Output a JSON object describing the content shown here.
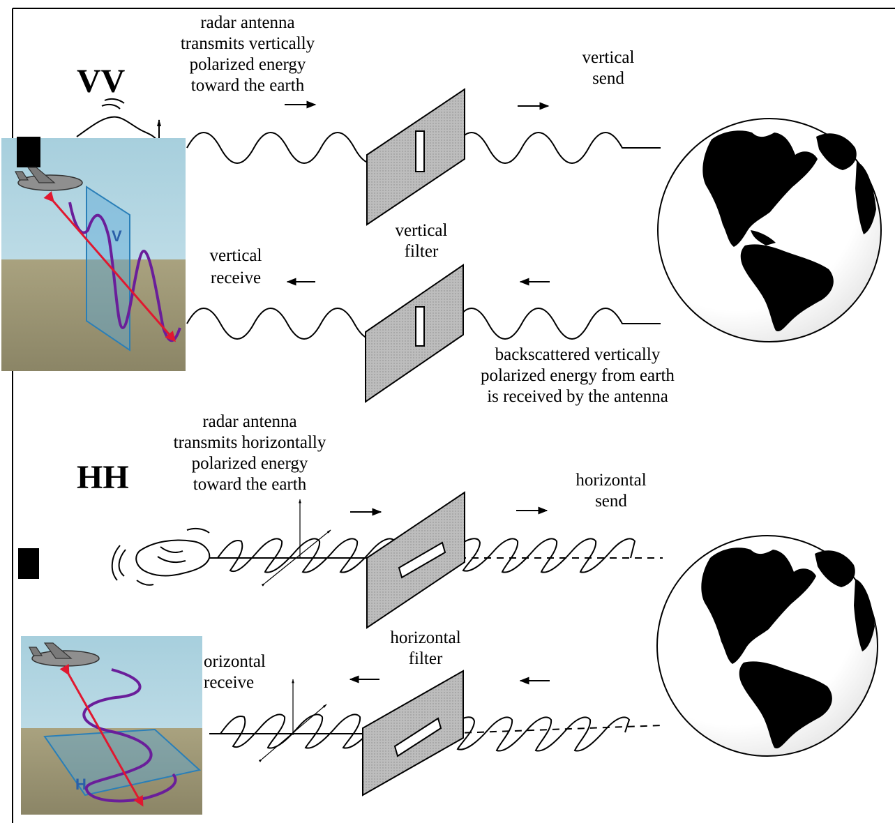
{
  "vv": {
    "mode_label": "VV",
    "transmit_caption": [
      "radar antenna",
      "transmits vertically",
      "polarized energy",
      "toward the earth"
    ],
    "send_caption": [
      "vertical",
      "send"
    ],
    "filter_caption": [
      "vertical",
      "filter"
    ],
    "receive_caption": [
      "vertical",
      "receive"
    ],
    "backscatter_caption": [
      "backscattered vertically",
      "polarized energy from earth",
      "is received by the antenna"
    ],
    "thumbnail_letter": "V"
  },
  "hh": {
    "mode_label": "HH",
    "transmit_caption": [
      "radar antenna",
      "transmits horizontally",
      "polarized energy",
      "toward the earth"
    ],
    "send_caption": [
      "horizontal",
      "send"
    ],
    "filter_caption": [
      "horizontal",
      "filter"
    ],
    "receive_caption": [
      "orizontal",
      "receive"
    ],
    "thumbnail_letter": "H"
  },
  "colors": {
    "ink": "#000000",
    "filter_gray": "#b9b9b9",
    "sky": "#b8d8e4",
    "ground": "#9a9474",
    "wave_purple": "#6a1e9a",
    "arrow_red": "#e01830",
    "plane_blue": "#3b8cc4"
  }
}
